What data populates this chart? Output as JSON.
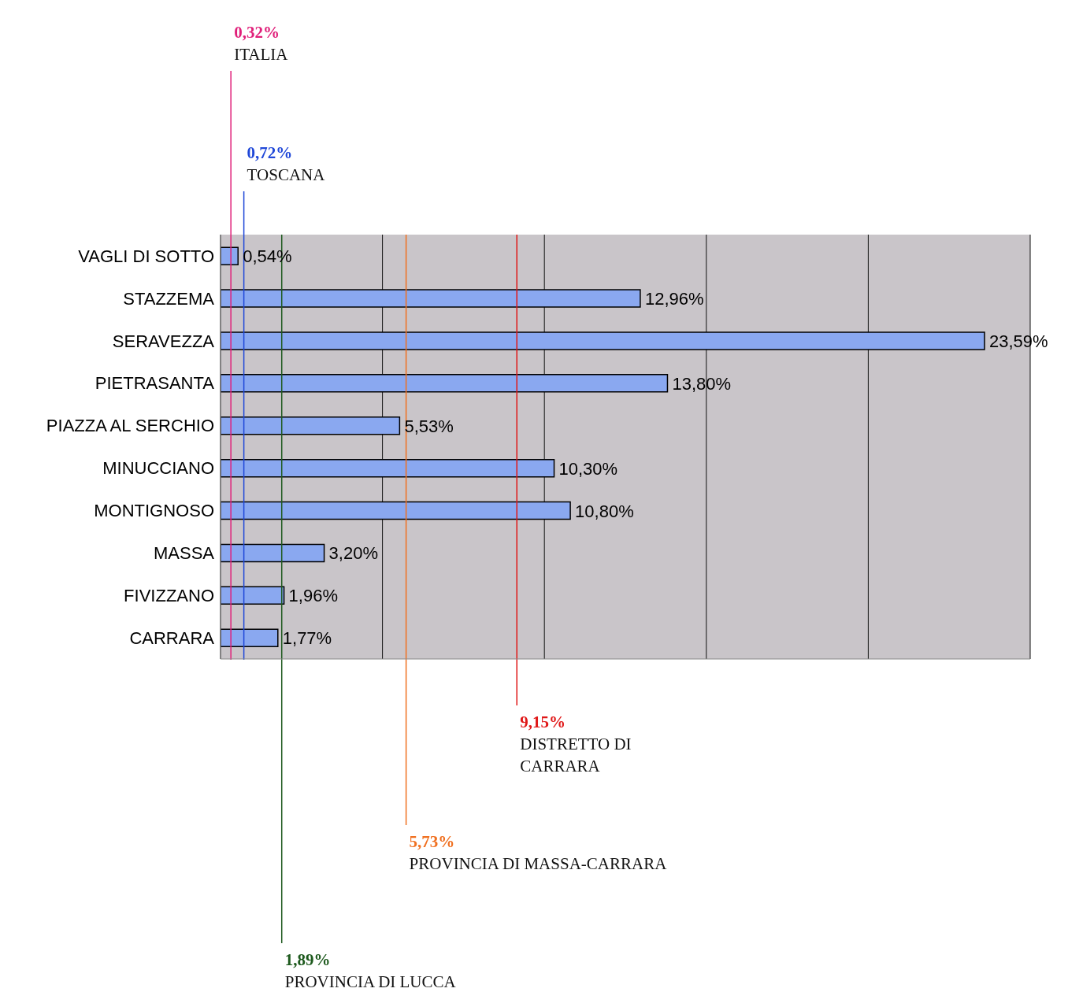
{
  "chart_data": {
    "type": "bar",
    "orientation": "horizontal",
    "categories": [
      "VAGLI DI SOTTO",
      "STAZZEMA",
      "SERAVEZZA",
      "PIETRASANTA",
      "PIAZZA AL SERCHIO",
      "MINUCCIANO",
      "MONTIGNOSO",
      "MASSA",
      "FIVIZZANO",
      "CARRARA"
    ],
    "values": [
      0.54,
      12.96,
      23.59,
      13.8,
      5.53,
      10.3,
      10.8,
      3.2,
      1.96,
      1.77
    ],
    "value_labels": [
      "0,54%",
      "12,96%",
      "23,59%",
      "13,80%",
      "5,53%",
      "10,30%",
      "10,80%",
      "3,20%",
      "1,96%",
      "1,77%"
    ],
    "color": "#8aa8f0",
    "xlim": [
      0,
      25
    ],
    "xticks": [
      {
        "value": 0,
        "label": null
      },
      {
        "value": 5,
        "label": null
      },
      {
        "value": 10,
        "label": null
      },
      {
        "value": 15,
        "label": null
      },
      {
        "value": 20,
        "label": null
      },
      {
        "value": 25,
        "label": null
      }
    ],
    "tick_labels": "y",
    "grid": "x",
    "ref_lines": [
      {
        "axis": "x",
        "value": 0.32,
        "label": "0,32%\nITALIA",
        "color": "#e0207a"
      },
      {
        "axis": "x",
        "value": 0.72,
        "label": "0,72%\nTOSCANA",
        "color": "#2048d8"
      },
      {
        "axis": "x",
        "value": 1.89,
        "label": "1,89%\nPROVINCIA DI LUCCA",
        "color": "#1e5a1e"
      },
      {
        "axis": "x",
        "value": 5.73,
        "label": "5,73%\nPROVINCIA DI MASSA-CARRARA",
        "color": "#f07020"
      },
      {
        "axis": "x",
        "value": 9.15,
        "label": "9,15%\nDISTRETTO DI\nCARRARA",
        "color": "#e01818"
      }
    ]
  }
}
